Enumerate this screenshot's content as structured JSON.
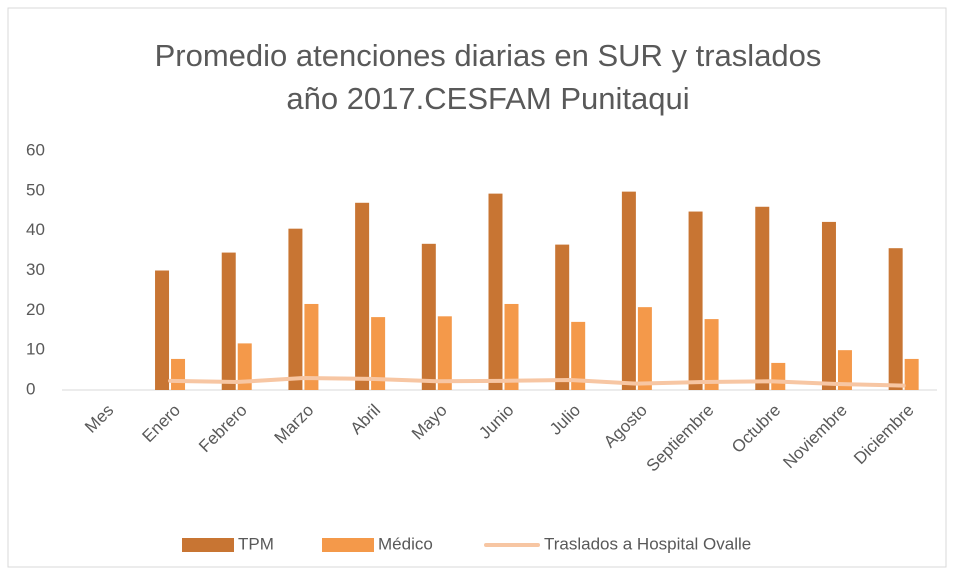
{
  "chart_data": {
    "type": "bar",
    "title": [
      "Promedio atenciones diarias en SUR  y traslados",
      "año 2017.CESFAM Punitaqui"
    ],
    "categories": [
      "Mes",
      "Enero",
      "Febrero",
      "Marzo",
      "Abril",
      "Mayo",
      "Junio",
      "Julio",
      "Agosto",
      "Septiembre",
      "Octubre",
      "Noviembre",
      "Diciembre"
    ],
    "series": [
      {
        "name": "TPM",
        "type": "bar",
        "color": "#c87533",
        "values": [
          null,
          30,
          34.5,
          40.5,
          47,
          36.7,
          49.3,
          36.5,
          49.8,
          44.8,
          46,
          42.2,
          35.6
        ]
      },
      {
        "name": "Médico",
        "type": "bar",
        "color": "#f4994a",
        "values": [
          null,
          7.8,
          11.7,
          21.6,
          18.3,
          18.5,
          21.6,
          17.1,
          20.8,
          17.8,
          6.8,
          10,
          7.8
        ]
      },
      {
        "name": "Traslados a Hospital Ovalle",
        "type": "line",
        "color": "#f7c6a3",
        "values": [
          null,
          2.3,
          2,
          3,
          2.8,
          2.2,
          2.3,
          2.5,
          1.6,
          2,
          2.2,
          1.5,
          1.1
        ]
      }
    ],
    "ylim": [
      0,
      60
    ],
    "yticks": [
      0,
      10,
      20,
      30,
      40,
      50,
      60
    ],
    "grid": false,
    "legend": "bottom"
  }
}
